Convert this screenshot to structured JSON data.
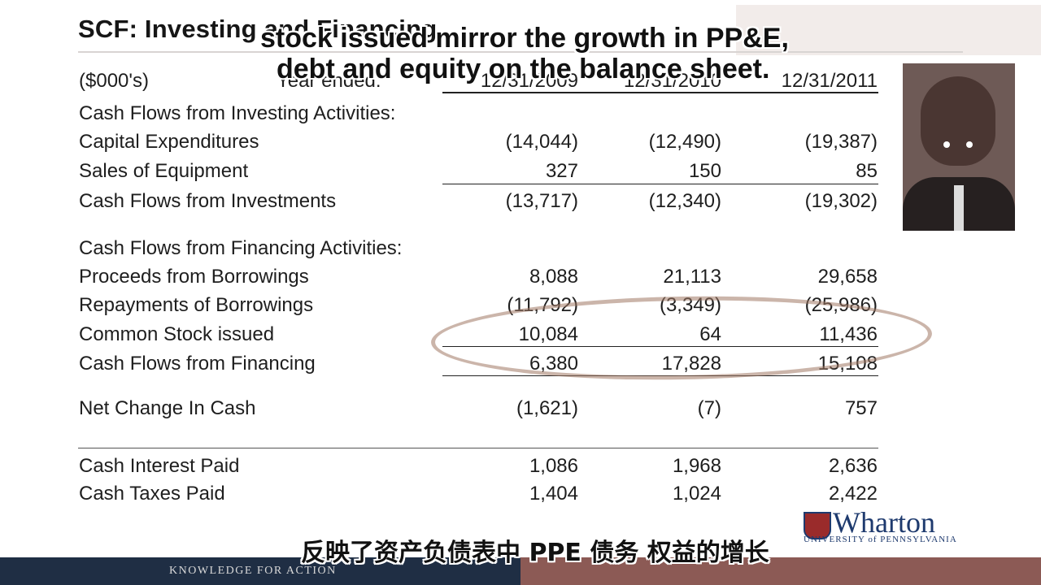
{
  "slide": {
    "title": "SCF: Investing and Financing",
    "units": "($000's)",
    "year_label": "Year ended:",
    "columns": [
      "12/31/2009",
      "12/31/2010",
      "12/31/2011"
    ]
  },
  "rows": [
    {
      "label": "Cash Flows from Investing Activities:",
      "values": [
        "",
        "",
        ""
      ]
    },
    {
      "label": "Capital Expenditures",
      "values": [
        "(14,044)",
        "(12,490)",
        "(19,387)"
      ]
    },
    {
      "label": "Sales of Equipment",
      "values": [
        "327",
        "150",
        "85"
      ]
    },
    {
      "label": "Cash Flows from Investments",
      "values": [
        "(13,717)",
        "(12,340)",
        "(19,302)"
      ]
    },
    {
      "label": "Cash Flows from Financing Activities:",
      "values": [
        "",
        "",
        ""
      ]
    },
    {
      "label": "Proceeds from Borrowings",
      "values": [
        "8,088",
        "21,113",
        "29,658"
      ]
    },
    {
      "label": "Repayments of Borrowings",
      "values": [
        "(11,792)",
        "(3,349)",
        "(25,986)"
      ]
    },
    {
      "label": "Common Stock issued",
      "values": [
        "10,084",
        "64",
        "11,436"
      ]
    },
    {
      "label": "Cash Flows from Financing",
      "values": [
        "6,380",
        "17,828",
        "15,108"
      ]
    },
    {
      "label": "Net Change In Cash",
      "values": [
        "(1,621)",
        "(7)",
        "757"
      ]
    },
    {
      "label": "Cash Interest Paid",
      "values": [
        "1,086",
        "1,968",
        "2,636"
      ]
    },
    {
      "label": "Cash Taxes Paid",
      "values": [
        "1,404",
        "1,024",
        "2,422"
      ]
    }
  ],
  "subtitles": {
    "line1": "stock issued mirror the growth in PP&E,",
    "line2": "debt and equity on the balance sheet.",
    "chinese": "反映了资产负债表中 PPE 债务 权益的增长"
  },
  "logo": {
    "name": "Wharton",
    "sub": "UNIVERSITY of PENNSYLVANIA"
  },
  "footer": {
    "text": "KNOWLEDGE FOR ACTION"
  },
  "colors": {
    "footer_navy": "#1f2e44",
    "footer_maroon": "#8c5a55",
    "brand_blue": "#1e3a6e",
    "highlight_circle": "#a07864"
  },
  "icons": {
    "logo_shield": "penn-shield-icon"
  }
}
